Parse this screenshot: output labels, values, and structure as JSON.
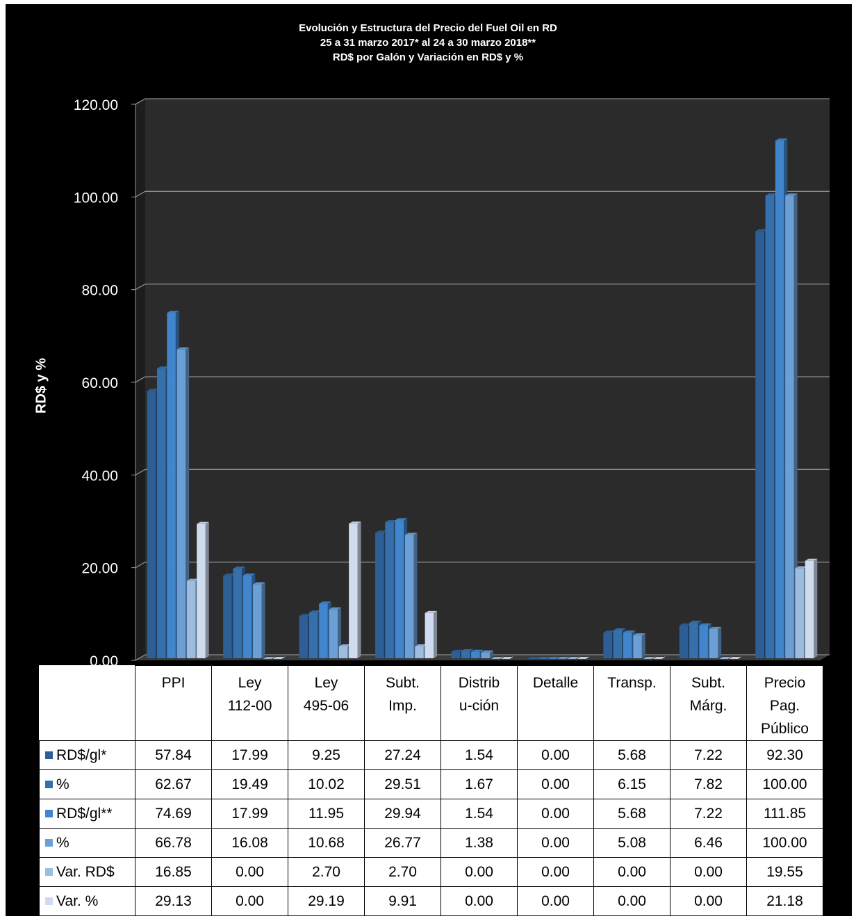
{
  "chart_data": {
    "type": "bar",
    "title_lines": [
      "Evolución y Estructura del Precio del Fuel Oil en RD",
      "25 a 31 marzo 2017* al 24  a 30 marzo 2018**",
      "RD$ por Galón y Variación en RD$ y %"
    ],
    "ylabel": "RD$ y %",
    "ylim": [
      0,
      120
    ],
    "yticks": [
      "0.00",
      "20.00",
      "40.00",
      "60.00",
      "80.00",
      "100.00",
      "120.00"
    ],
    "grid": true,
    "categories": [
      [
        "PPI"
      ],
      [
        "Ley",
        "112-00"
      ],
      [
        "Ley",
        "495-06"
      ],
      [
        "Subt.",
        "Imp."
      ],
      [
        "Distrib",
        "u-ción"
      ],
      [
        "Detalle"
      ],
      [
        "Transp."
      ],
      [
        "Subt.",
        "Márg."
      ],
      [
        "Precio",
        "Pag.",
        "Público"
      ]
    ],
    "series": [
      {
        "name": "RD$/gl*",
        "color": "#2d5f96",
        "values": [
          57.84,
          17.99,
          9.25,
          27.24,
          1.54,
          0.0,
          5.68,
          7.22,
          92.3
        ],
        "labels": [
          "57.84",
          "17.99",
          "9.25",
          "27.24",
          "1.54",
          "0.00",
          "5.68",
          "7.22",
          "92.30"
        ]
      },
      {
        "name": "%",
        "color": "#3570ad",
        "values": [
          62.67,
          19.49,
          10.02,
          29.51,
          1.67,
          0.0,
          6.15,
          7.82,
          100.0
        ],
        "labels": [
          "62.67",
          "19.49",
          "10.02",
          "29.51",
          "1.67",
          "0.00",
          "6.15",
          "7.82",
          "100.00"
        ]
      },
      {
        "name": "RD$/gl**",
        "color": "#4185cc",
        "values": [
          74.69,
          17.99,
          11.95,
          29.94,
          1.54,
          0.0,
          5.68,
          7.22,
          111.85
        ],
        "labels": [
          "74.69",
          "17.99",
          "11.95",
          "29.94",
          "1.54",
          "0.00",
          "5.68",
          "7.22",
          "111.85"
        ]
      },
      {
        "name": "%",
        "color": "#6b9fd6",
        "values": [
          66.78,
          16.08,
          10.68,
          26.77,
          1.38,
          0.0,
          5.08,
          6.46,
          100.0
        ],
        "labels": [
          "66.78",
          "16.08",
          "10.68",
          "26.77",
          "1.38",
          "0.00",
          "5.08",
          "6.46",
          "100.00"
        ]
      },
      {
        "name": "Var. RD$",
        "color": "#9dbde0",
        "values": [
          16.85,
          0.0,
          2.7,
          2.7,
          0.0,
          0.0,
          0.0,
          0.0,
          19.55
        ],
        "labels": [
          "16.85",
          "0.00",
          "2.70",
          "2.70",
          "0.00",
          "0.00",
          "0.00",
          "0.00",
          "19.55"
        ]
      },
      {
        "name": "Var. %",
        "color": "#cfdcef",
        "values": [
          29.13,
          0.0,
          29.19,
          9.91,
          0.0,
          0.0,
          0.0,
          0.0,
          21.18
        ],
        "labels": [
          "29.13",
          "0.00",
          "29.19",
          "9.91",
          "0.00",
          "0.00",
          "0.00",
          "0.00",
          "21.18"
        ]
      }
    ],
    "plot_background": "#2b2b2b",
    "legend": "data-table"
  }
}
